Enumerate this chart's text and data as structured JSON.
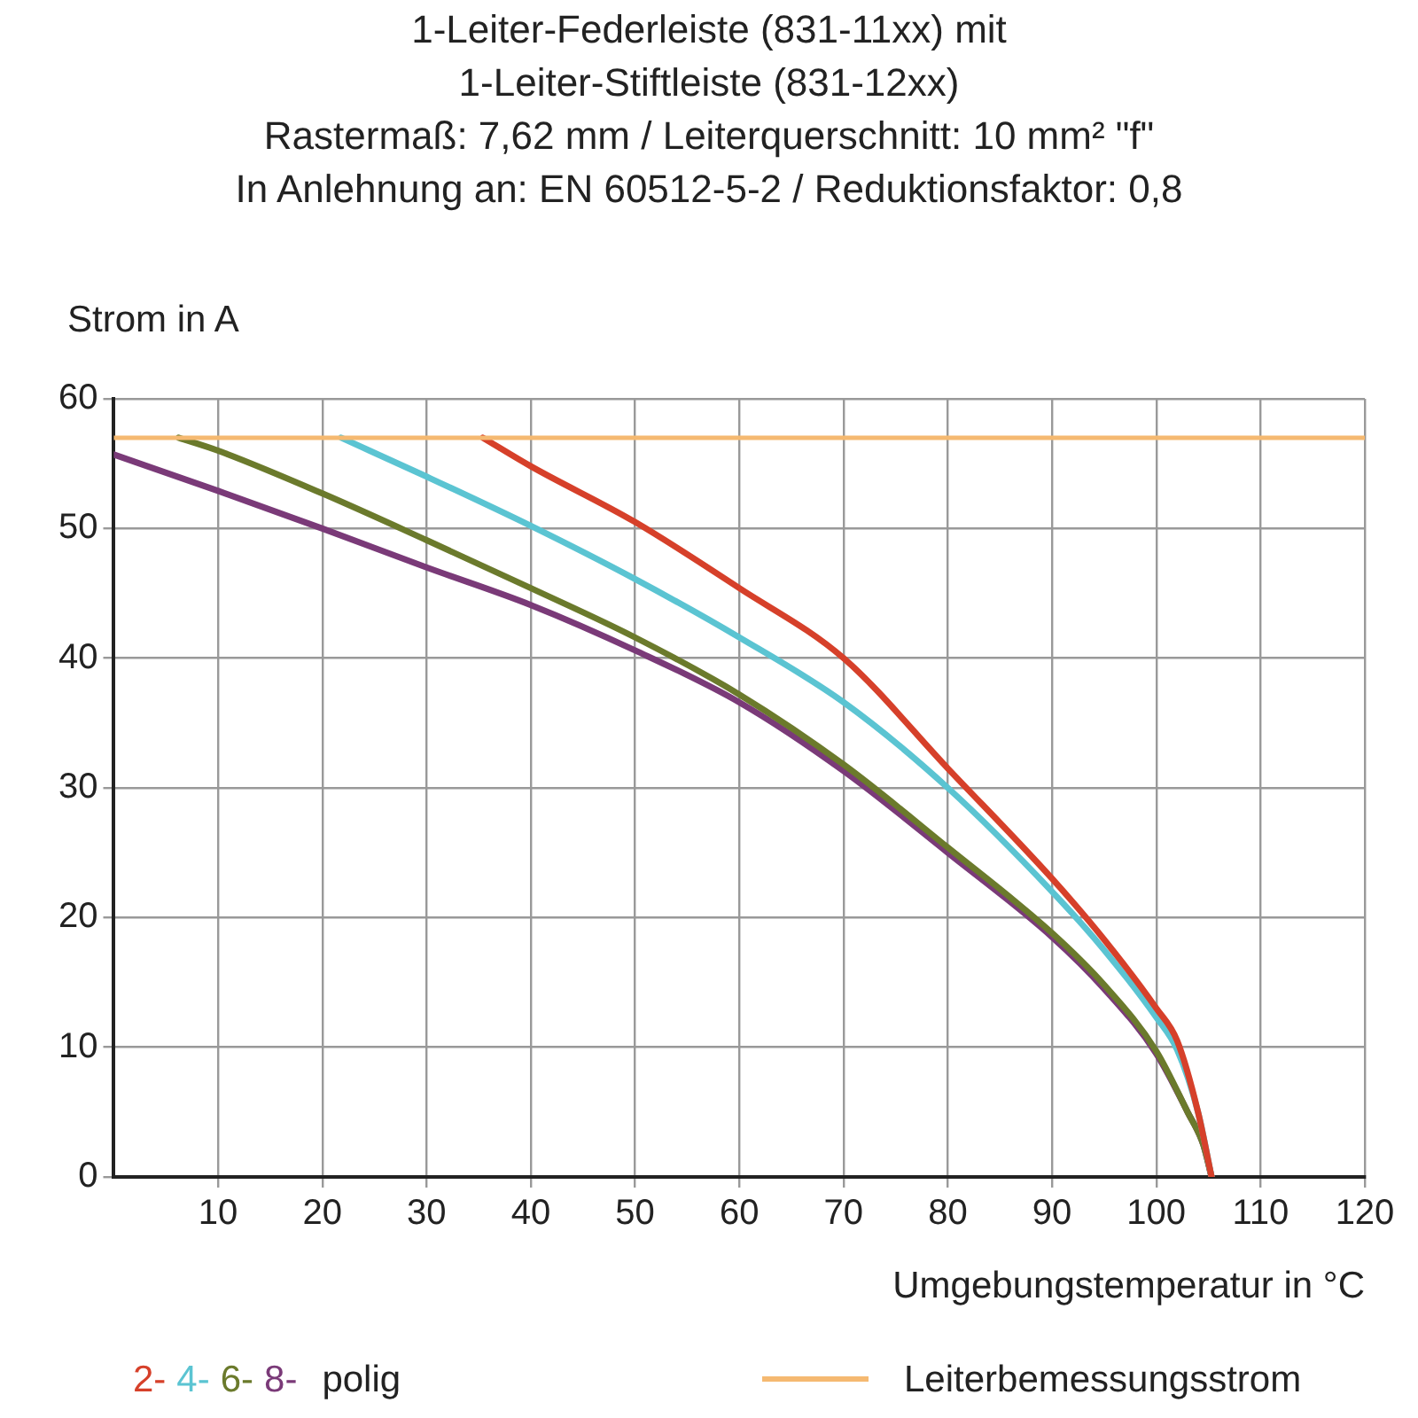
{
  "chart_data": {
    "type": "line",
    "title": "1-Leiter-Federleiste (831-11xx) mit\n1-Leiter-Stiftleiste (831-12xx)",
    "subtitle": "Rastermaß: 7,62 mm / Leiterquerschnitt: 10 mm² \"f\"\nIn Anlehnung an: EN 60512-5-2 / Reduktionsfaktor: 0,8",
    "xlabel": "Umgebungstemperatur in °C",
    "ylabel": "Strom in A",
    "legend_title": "polig",
    "series": [
      {
        "name": "2-",
        "color": "#d6402a",
        "x": [
          35.4,
          40,
          50,
          60,
          70,
          80,
          90,
          95,
          100,
          102,
          104,
          105.3
        ],
        "values": [
          57,
          54.8,
          50.5,
          45.4,
          40,
          31.5,
          23,
          18.3,
          13,
          10.5,
          5,
          0
        ]
      },
      {
        "name": "4-",
        "color": "#5bc4d2",
        "x": [
          21.8,
          30,
          40,
          50,
          60,
          70,
          80,
          90,
          95,
          100,
          102,
          104,
          105.3
        ],
        "values": [
          57,
          54,
          50.2,
          46.1,
          41.6,
          36.6,
          30,
          22,
          17.5,
          12.3,
          9.8,
          5,
          0
        ]
      },
      {
        "name": "6-",
        "color": "#6b7a2c",
        "x": [
          6.2,
          10,
          20,
          30,
          40,
          50,
          60,
          70,
          80,
          90,
          95,
          100,
          103,
          104.5,
          105.3
        ],
        "values": [
          57,
          56,
          52.7,
          49.1,
          45.4,
          41.6,
          37.2,
          31.8,
          25.4,
          18.8,
          14.8,
          9.7,
          5,
          2.5,
          0
        ]
      },
      {
        "name": "8-",
        "color": "#7a3a78",
        "x": [
          0,
          10,
          20,
          30,
          40,
          50,
          60,
          70,
          80,
          90,
          95,
          100,
          103,
          104.5,
          105.3
        ],
        "values": [
          55.7,
          52.9,
          50,
          47,
          44.1,
          40.6,
          36.6,
          31.3,
          25,
          18.5,
          14.5,
          9.5,
          5,
          2.5,
          0
        ]
      }
    ],
    "ref_lines": [
      {
        "axis": "y",
        "value": 57,
        "label": "Leiterbemessungsstrom",
        "color": "#f5b971"
      }
    ],
    "xlim": [
      0,
      120
    ],
    "xticks": [
      10,
      20,
      30,
      40,
      50,
      60,
      70,
      80,
      90,
      100,
      110,
      120
    ],
    "ylim": [
      0,
      60
    ],
    "yticks": [
      0,
      10,
      20,
      30,
      40,
      50,
      60
    ],
    "grid": true,
    "legend": "bottom",
    "marker": "none",
    "line_style": "solid"
  }
}
